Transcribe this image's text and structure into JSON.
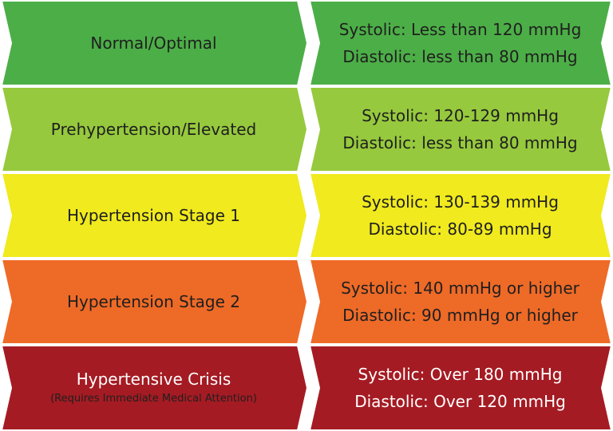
{
  "categories": [
    {
      "label": "Normal/Optimal",
      "note": "",
      "systolic": "Systolic: Less than 120 mmHg",
      "diastolic": "Diastolic: less than 80 mmHg",
      "color": "#4cae47"
    },
    {
      "label": "Prehypertension/Elevated",
      "note": "",
      "systolic": "Systolic: 120-129 mmHg",
      "diastolic": "Diastolic: less than 80 mmHg",
      "color": "#96c93d"
    },
    {
      "label": "Hypertension Stage 1",
      "note": "",
      "systolic": "Systolic: 130-139 mmHg",
      "diastolic": "Diastolic: 80-89 mmHg",
      "color": "#f0ea1e"
    },
    {
      "label": "Hypertension Stage 2",
      "note": "",
      "systolic": "Systolic: 140 mmHg or higher",
      "diastolic": "Diastolic: 90 mmHg or higher",
      "color": "#ee6a27"
    },
    {
      "label": "Hypertensive Crisis",
      "note": "(Requires Immediate Medical Attention)",
      "systolic": "Systolic: Over 180 mmHg",
      "diastolic": "Diastolic: Over 120 mmHg",
      "color": "#a51b23"
    }
  ]
}
